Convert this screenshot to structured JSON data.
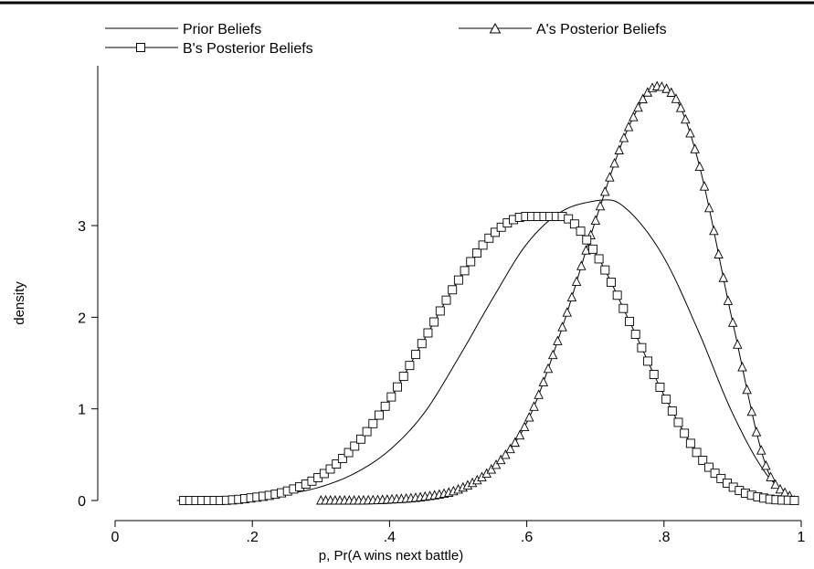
{
  "chart_data": {
    "type": "line",
    "xlabel": "p, Pr(A wins next battle)",
    "ylabel": "density",
    "xlim": [
      0,
      1
    ],
    "ylim": [
      0,
      4.5
    ],
    "x_ticks": [
      {
        "value": 0,
        "label": "0"
      },
      {
        "value": 0.2,
        "label": ".2"
      },
      {
        "value": 0.4,
        "label": ".4"
      },
      {
        "value": 0.6,
        "label": ".6"
      },
      {
        "value": 0.8,
        "label": ".8"
      },
      {
        "value": 1,
        "label": "1"
      }
    ],
    "y_ticks": [
      {
        "value": 0,
        "label": "0"
      },
      {
        "value": 1,
        "label": "1"
      },
      {
        "value": 2,
        "label": "2"
      },
      {
        "value": 3,
        "label": "3"
      }
    ],
    "grid": false,
    "legend_placement": "top",
    "series": [
      {
        "name": "Prior Beliefs",
        "marker": "none",
        "x": [
          0.09,
          0.15,
          0.2,
          0.25,
          0.3,
          0.35,
          0.4,
          0.45,
          0.5,
          0.55,
          0.6,
          0.65,
          0.7,
          0.72,
          0.75,
          0.8,
          0.85,
          0.9,
          0.95,
          0.99
        ],
        "y": [
          0.0,
          0.0,
          0.02,
          0.07,
          0.15,
          0.3,
          0.55,
          0.95,
          1.55,
          2.2,
          2.8,
          3.15,
          3.27,
          3.28,
          3.15,
          2.65,
          1.85,
          0.95,
          0.28,
          0.02
        ]
      },
      {
        "name": "A's Posterior Beliefs",
        "marker": "triangle",
        "x": [
          0.3,
          0.35,
          0.4,
          0.45,
          0.5,
          0.55,
          0.6,
          0.65,
          0.7,
          0.75,
          0.79,
          0.82,
          0.85,
          0.9,
          0.95,
          0.99
        ],
        "y": [
          0.0,
          0.0,
          0.01,
          0.04,
          0.12,
          0.35,
          0.85,
          1.85,
          3.05,
          4.1,
          4.52,
          4.35,
          3.7,
          1.95,
          0.35,
          0.0
        ]
      },
      {
        "name": "B's Posterior Beliefs",
        "marker": "square",
        "x": [
          0.1,
          0.15,
          0.2,
          0.25,
          0.3,
          0.35,
          0.4,
          0.45,
          0.5,
          0.55,
          0.6,
          0.65,
          0.7,
          0.75,
          0.8,
          0.85,
          0.9,
          0.95,
          0.99
        ],
        "y": [
          0.0,
          0.0,
          0.03,
          0.1,
          0.27,
          0.6,
          1.1,
          1.75,
          2.4,
          2.9,
          3.1,
          3.1,
          2.7,
          1.95,
          1.15,
          0.5,
          0.15,
          0.02,
          0.0
        ]
      }
    ]
  }
}
